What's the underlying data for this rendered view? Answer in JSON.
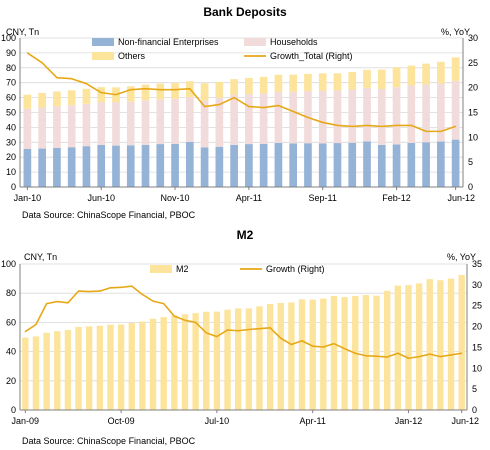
{
  "colors": {
    "nonfin": "#95B3D7",
    "households": "#F2DCDB",
    "others": "#FCE49C",
    "growth": "#E7A818",
    "m2": "#FCE49C",
    "grid": "#d9d9d9",
    "axis": "#808080"
  },
  "chart_data": [
    {
      "type": "bar",
      "stacked": true,
      "title": "Bank Deposits",
      "ylabel_left": "CNY, Tn",
      "ylabel_right": "%, YoY",
      "ylim_left": [
        0,
        100
      ],
      "ylim_right": [
        0,
        30
      ],
      "yticks_left": [
        "0",
        "10",
        "20",
        "30",
        "40",
        "50",
        "60",
        "70",
        "80",
        "90",
        "100"
      ],
      "yticks_right": [
        "0",
        "5",
        "10",
        "15",
        "20",
        "25",
        "30"
      ],
      "xtick_labels": [
        "Jan-10",
        "Jun-10",
        "Nov-10",
        "Apr-11",
        "Sep-11",
        "Feb-12",
        "Jun-12"
      ],
      "xtick_indices": [
        0,
        5,
        10,
        15,
        20,
        25,
        29
      ],
      "grid": true,
      "legend_placement": "top",
      "source": "Data Source: ChinaScope Financial, PBOC",
      "series": [
        {
          "name": "Non-financial Enterprises",
          "kind": "bar",
          "axis": "left",
          "values": [
            25.5,
            25.8,
            26.2,
            26.7,
            27.4,
            28.3,
            27.8,
            28.0,
            28.3,
            28.8,
            29.0,
            30.3,
            26.5,
            27.0,
            28.3,
            28.8,
            29.0,
            29.6,
            29.3,
            29.4,
            29.3,
            29.5,
            29.7,
            30.6,
            28.3,
            28.6,
            29.6,
            30.0,
            30.5,
            31.8
          ]
        },
        {
          "name": "Households",
          "kind": "bar",
          "axis": "left",
          "values": [
            27.0,
            27.5,
            28.0,
            28.2,
            28.4,
            28.7,
            29.2,
            29.5,
            30.0,
            30.0,
            30.2,
            30.0,
            31.5,
            33.0,
            33.5,
            33.6,
            33.8,
            34.3,
            34.6,
            35.0,
            35.4,
            35.3,
            35.7,
            36.0,
            37.5,
            38.4,
            38.6,
            38.8,
            39.0,
            39.4
          ]
        },
        {
          "name": "Others",
          "kind": "bar",
          "axis": "left",
          "values": [
            9.5,
            9.8,
            9.9,
            10.0,
            10.1,
            10.0,
            9.9,
            10.1,
            10.4,
            10.6,
            10.8,
            10.7,
            11.6,
            10.5,
            10.6,
            10.8,
            11.1,
            11.4,
            11.5,
            11.5,
            11.6,
            11.5,
            11.8,
            12.0,
            13.0,
            13.4,
            13.3,
            14.0,
            14.5,
            15.8
          ]
        },
        {
          "name": "Growth_Total (Right)",
          "kind": "line",
          "axis": "right",
          "values": [
            27.0,
            25.0,
            22.0,
            21.8,
            20.8,
            19.0,
            18.6,
            19.6,
            19.8,
            19.6,
            19.6,
            19.8,
            16.2,
            16.6,
            18.0,
            16.2,
            16.0,
            16.4,
            15.2,
            14.0,
            13.0,
            12.4,
            12.2,
            12.4,
            12.2,
            12.4,
            12.4,
            11.2,
            11.2,
            12.2
          ]
        }
      ]
    },
    {
      "type": "bar",
      "title": "M2",
      "ylabel_left": "CNY, Tn",
      "ylabel_right": "%, YoY",
      "ylim_left": [
        0,
        100
      ],
      "ylim_right": [
        0,
        35
      ],
      "yticks_left": [
        "0",
        "20",
        "40",
        "60",
        "80",
        "100"
      ],
      "yticks_right": [
        "0",
        "5",
        "10",
        "15",
        "20",
        "25",
        "30",
        "35"
      ],
      "xtick_labels": [
        "Jan-09",
        "Oct-09",
        "Jul-10",
        "Apr-11",
        "Jan-12",
        "Jun-12"
      ],
      "xtick_indices": [
        0,
        9,
        18,
        27,
        36,
        41
      ],
      "grid": true,
      "legend_placement": "top",
      "source": "Data Source: ChinaScope Financial, PBOC",
      "series": [
        {
          "name": "M2",
          "kind": "bar",
          "axis": "left",
          "values": [
            49.6,
            50.4,
            52.9,
            54.0,
            54.8,
            56.9,
            57.3,
            57.7,
            58.5,
            58.6,
            59.6,
            60.6,
            62.5,
            63.6,
            64.9,
            65.6,
            66.3,
            67.3,
            67.4,
            68.7,
            69.6,
            69.6,
            71.0,
            72.6,
            73.3,
            73.7,
            75.8,
            75.6,
            76.3,
            78.1,
            77.3,
            78.1,
            78.7,
            78.3,
            81.6,
            85.2,
            85.5,
            86.7,
            89.6,
            88.9,
            90.0,
            92.5
          ]
        },
        {
          "name": "Growth (Right)",
          "kind": "line",
          "axis": "right",
          "values": [
            18.8,
            20.5,
            25.5,
            26.0,
            25.7,
            28.5,
            28.4,
            28.5,
            29.3,
            29.4,
            29.7,
            27.7,
            26.1,
            25.5,
            22.5,
            21.5,
            21.0,
            18.5,
            17.6,
            19.2,
            19.0,
            19.3,
            19.5,
            19.7,
            17.2,
            15.7,
            16.6,
            15.3,
            15.1,
            15.9,
            14.7,
            13.6,
            13.0,
            12.9,
            12.7,
            13.6,
            12.4,
            12.8,
            13.4,
            12.8,
            13.2,
            13.6
          ]
        }
      ]
    }
  ]
}
